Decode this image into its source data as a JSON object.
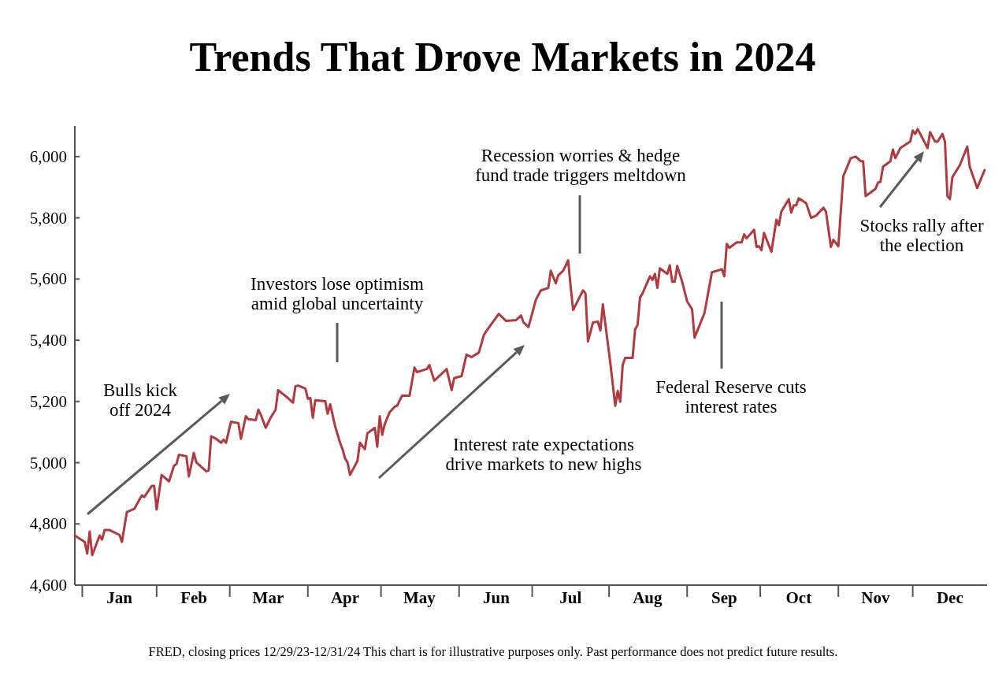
{
  "chart_data": {
    "type": "line",
    "title": "Trends That Drove Markets in 2024",
    "x": [
      "2023-12-29",
      "2024-01-02",
      "2024-01-03",
      "2024-01-04",
      "2024-01-05",
      "2024-01-08",
      "2024-01-09",
      "2024-01-10",
      "2024-01-12",
      "2024-01-16",
      "2024-01-17",
      "2024-01-19",
      "2024-01-22",
      "2024-01-25",
      "2024-01-26",
      "2024-01-29",
      "2024-01-30",
      "2024-01-31",
      "2024-02-02",
      "2024-02-05",
      "2024-02-07",
      "2024-02-08",
      "2024-02-09",
      "2024-02-12",
      "2024-02-13",
      "2024-02-15",
      "2024-02-16",
      "2024-02-20",
      "2024-02-21",
      "2024-02-22",
      "2024-02-24",
      "2024-02-26",
      "2024-02-27",
      "2024-02-28",
      "2024-03-01",
      "2024-03-04",
      "2024-03-05",
      "2024-03-07",
      "2024-03-08",
      "2024-03-11",
      "2024-03-12",
      "2024-03-13",
      "2024-03-15",
      "2024-03-17",
      "2024-03-19",
      "2024-03-20",
      "2024-03-24",
      "2024-03-26",
      "2024-03-27",
      "2024-03-28",
      "2024-03-31",
      "2024-04-01",
      "2024-04-02",
      "2024-04-03",
      "2024-04-04",
      "2024-04-08",
      "2024-04-09",
      "2024-04-10",
      "2024-04-12",
      "2024-04-14",
      "2024-04-15",
      "2024-04-16",
      "2024-04-17",
      "2024-04-18",
      "2024-04-21",
      "2024-04-22",
      "2024-04-24",
      "2024-04-25",
      "2024-04-28",
      "2024-04-29",
      "2024-04-30",
      "2024-05-01",
      "2024-05-02",
      "2024-05-04",
      "2024-05-06",
      "2024-05-07",
      "2024-05-09",
      "2024-05-12",
      "2024-05-14",
      "2024-05-15",
      "2024-05-19",
      "2024-05-20",
      "2024-05-22",
      "2024-05-27",
      "2024-05-29",
      "2024-05-30",
      "2024-06-02",
      "2024-06-04",
      "2024-06-06",
      "2024-06-09",
      "2024-06-11",
      "2024-06-12",
      "2024-06-17",
      "2024-06-20",
      "2024-06-24",
      "2024-06-26",
      "2024-06-27",
      "2024-06-29",
      "2024-07-02",
      "2024-07-04",
      "2024-07-07",
      "2024-07-08",
      "2024-07-10",
      "2024-07-11",
      "2024-07-13",
      "2024-07-15",
      "2024-07-16",
      "2024-07-17",
      "2024-07-21",
      "2024-07-22",
      "2024-07-23",
      "2024-07-25",
      "2024-07-27",
      "2024-07-28",
      "2024-07-29",
      "2024-08-01",
      "2024-08-03",
      "2024-08-04",
      "2024-08-05",
      "2024-08-06",
      "2024-08-07",
      "2024-08-10",
      "2024-08-11",
      "2024-08-12",
      "2024-08-13",
      "2024-08-14",
      "2024-08-17",
      "2024-08-18",
      "2024-08-19",
      "2024-08-20",
      "2024-08-21",
      "2024-08-24",
      "2024-08-25",
      "2024-08-26",
      "2024-08-27",
      "2024-08-28",
      "2024-08-30",
      "2024-09-01",
      "2024-09-03",
      "2024-09-04",
      "2024-09-08",
      "2024-09-11",
      "2024-09-15",
      "2024-09-16",
      "2024-09-17",
      "2024-09-18",
      "2024-09-21",
      "2024-09-23",
      "2024-09-24",
      "2024-09-25",
      "2024-09-28",
      "2024-09-29",
      "2024-09-30",
      "2024-10-01",
      "2024-10-02",
      "2024-10-05",
      "2024-10-07",
      "2024-10-08",
      "2024-10-09",
      "2024-10-12",
      "2024-10-13",
      "2024-10-14",
      "2024-10-15",
      "2024-10-16",
      "2024-10-19",
      "2024-10-21",
      "2024-10-23",
      "2024-10-26",
      "2024-10-27",
      "2024-10-29",
      "2024-10-30",
      "2024-11-01",
      "2024-11-03",
      "2024-11-06",
      "2024-11-08",
      "2024-11-10",
      "2024-11-11",
      "2024-11-12",
      "2024-11-16",
      "2024-11-17",
      "2024-11-18",
      "2024-11-19",
      "2024-11-22",
      "2024-11-23",
      "2024-11-24",
      "2024-11-26",
      "2024-11-30",
      "2024-12-01",
      "2024-12-02",
      "2024-12-03",
      "2024-12-07",
      "2024-12-08",
      "2024-12-10",
      "2024-12-11",
      "2024-12-13",
      "2024-12-14",
      "2024-12-15",
      "2024-12-16",
      "2024-12-17",
      "2024-12-20",
      "2024-12-23",
      "2024-12-24",
      "2024-12-27",
      "2024-12-30"
    ],
    "series": [
      {
        "color": "#b23a3e",
        "values": [
          4762,
          4741,
          4703,
          4775,
          4698,
          4762,
          4749,
          4780,
          4780,
          4764,
          4741,
          4839,
          4849,
          4893,
          4888,
          4924,
          4924,
          4847,
          4960,
          4939,
          4990,
          4996,
          5026,
          5021,
          4955,
          5032,
          5001,
          4972,
          4975,
          5086,
          5078,
          5065,
          5075,
          5065,
          5134,
          5129,
          5078,
          5152,
          5142,
          5139,
          5173,
          5157,
          5114,
          5147,
          5173,
          5237,
          5211,
          5196,
          5250,
          5252,
          5242,
          5209,
          5211,
          5147,
          5204,
          5201,
          5160,
          5191,
          5119,
          5065,
          5044,
          5014,
          5001,
          4960,
          5006,
          5065,
          5044,
          5096,
          5114,
          5052,
          5152,
          5091,
          5126,
          5165,
          5183,
          5186,
          5219,
          5219,
          5311,
          5296,
          5306,
          5319,
          5268,
          5306,
          5237,
          5276,
          5283,
          5353,
          5345,
          5360,
          5417,
          5430,
          5486,
          5463,
          5466,
          5481,
          5458,
          5443,
          5533,
          5563,
          5571,
          5627,
          5586,
          5612,
          5627,
          5661,
          5576,
          5499,
          5563,
          5553,
          5396,
          5458,
          5461,
          5432,
          5517,
          5327,
          5186,
          5234,
          5199,
          5319,
          5342,
          5342,
          5435,
          5450,
          5540,
          5553,
          5609,
          5597,
          5617,
          5571,
          5635,
          5617,
          5645,
          5591,
          5591,
          5643,
          5591,
          5527,
          5501,
          5409,
          5489,
          5622,
          5632,
          5609,
          5715,
          5702,
          5720,
          5720,
          5746,
          5733,
          5761,
          5705,
          5707,
          5694,
          5751,
          5689,
          5794,
          5776,
          5820,
          5861,
          5817,
          5841,
          5841,
          5864,
          5848,
          5800,
          5807,
          5833,
          5820,
          5705,
          5728,
          5707,
          5936,
          5995,
          6000,
          5985,
          5985,
          5871,
          5895,
          5915,
          5918,
          5967,
          5985,
          6023,
          5995,
          6028,
          6049,
          6085,
          6074,
          6090,
          6028,
          6080,
          6049,
          6049,
          6074,
          6049,
          5871,
          5861,
          5933,
          5972,
          6033,
          5967,
          5897,
          5956
        ]
      }
    ],
    "xlim": [
      "2023-12-29",
      "2024-12-31"
    ],
    "xticks": [
      {
        "value": "2024-01-16",
        "label": "Jan"
      },
      {
        "value": "2024-02-15",
        "label": "Feb"
      },
      {
        "value": "2024-03-16",
        "label": "Mar"
      },
      {
        "value": "2024-04-16",
        "label": "Apr"
      },
      {
        "value": "2024-05-16",
        "label": "May"
      },
      {
        "value": "2024-06-16",
        "label": "Jun"
      },
      {
        "value": "2024-07-16",
        "label": "Jul"
      },
      {
        "value": "2024-08-16",
        "label": "Aug"
      },
      {
        "value": "2024-09-16",
        "label": "Sep"
      },
      {
        "value": "2024-10-16",
        "label": "Oct"
      },
      {
        "value": "2024-11-16",
        "label": "Nov"
      },
      {
        "value": "2024-12-16",
        "label": "Dec"
      }
    ],
    "ylim": [
      4600,
      6100
    ],
    "yticks": [
      {
        "value": 4600,
        "label": "4,600"
      },
      {
        "value": 4800,
        "label": "4,800"
      },
      {
        "value": 5000,
        "label": "5,000"
      },
      {
        "value": 5200,
        "label": "5,200"
      },
      {
        "value": 5400,
        "label": "5,400"
      },
      {
        "value": 5600,
        "label": "5,600"
      },
      {
        "value": 5800,
        "label": "5,800"
      },
      {
        "value": 6000,
        "label": "6,000"
      }
    ],
    "grid": false,
    "marker": "none",
    "line_style": "solid",
    "annotations": [
      "Bulls kick off 2024",
      "Investors lose optimism amid global uncertainty",
      "Recession worries & hedge fund trade triggers meltdown",
      "Interest rate expectations drive markets to new highs",
      "Federal Reserve cuts interest rates",
      "Stocks rally after the election",
      "FRED, closing prices 12/29/23-12/31/24  This chart is for illustrative purposes only. Past performance does not predict future results."
    ]
  }
}
